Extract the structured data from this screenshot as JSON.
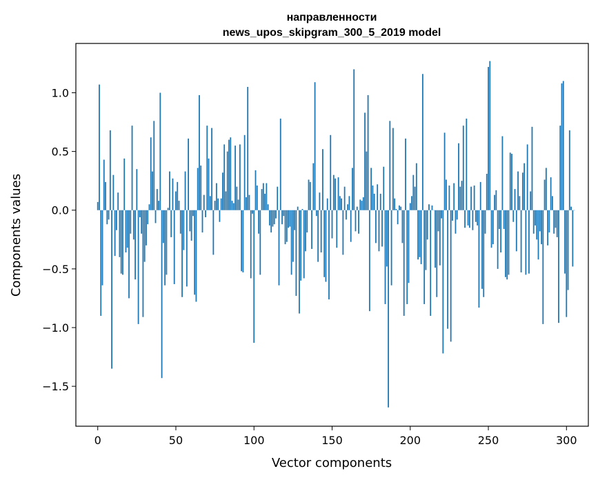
{
  "chart_data": {
    "type": "bar",
    "title": [
      "направленности",
      "news_upos_skipgram_300_5_2019 model"
    ],
    "xlabel": "Vector components",
    "ylabel": "Components values",
    "xlim": [
      -14,
      314
    ],
    "ylim": [
      -1.84,
      1.42
    ],
    "xticks": [
      0,
      50,
      100,
      150,
      200,
      250,
      300
    ],
    "xtick_labels": [
      "0",
      "50",
      "100",
      "150",
      "200",
      "250",
      "300"
    ],
    "yticks": [
      -1.5,
      -1.0,
      -0.5,
      0.0,
      0.5,
      1.0
    ],
    "ytick_labels": [
      "−1.5",
      "−1.0",
      "−0.5",
      "0.0",
      "0.5",
      "1.0"
    ],
    "bar_color": "#1f77b4",
    "grid": false,
    "values": [
      0.07,
      1.07,
      -0.9,
      -0.64,
      0.43,
      0.24,
      -0.12,
      -0.08,
      0.68,
      -1.35,
      0.3,
      -0.39,
      -0.17,
      0.15,
      -0.4,
      -0.54,
      -0.55,
      0.44,
      -0.36,
      -0.32,
      -0.75,
      -0.2,
      0.72,
      -0.25,
      -0.59,
      0.35,
      -0.97,
      -0.06,
      -0.2,
      -0.91,
      -0.44,
      -0.3,
      -0.12,
      0.05,
      0.62,
      0.33,
      0.76,
      -0.11,
      0.18,
      0.08,
      1.0,
      -1.43,
      -0.28,
      -0.64,
      -0.55,
      0.02,
      0.33,
      -0.23,
      0.27,
      -0.63,
      0.16,
      0.24,
      0.08,
      -0.2,
      -0.74,
      -0.34,
      0.33,
      -0.65,
      0.61,
      -0.18,
      -0.26,
      -0.05,
      -0.72,
      -0.78,
      0.36,
      0.98,
      0.38,
      -0.19,
      0.13,
      -0.06,
      0.72,
      0.44,
      0.12,
      0.7,
      -0.38,
      0.08,
      0.23,
      0.1,
      -0.1,
      0.1,
      0.32,
      0.56,
      0.16,
      0.5,
      0.6,
      0.62,
      0.08,
      0.06,
      0.55,
      0.2,
      0.09,
      0.56,
      -0.52,
      -0.53,
      0.64,
      0.11,
      1.05,
      0.13,
      -0.58,
      -0.03,
      -1.13,
      0.34,
      0.21,
      -0.2,
      -0.55,
      0.18,
      0.23,
      0.14,
      0.23,
      0.05,
      -0.13,
      -0.19,
      -0.14,
      -0.12,
      -0.07,
      0.2,
      -0.64,
      0.78,
      -0.12,
      -0.05,
      -0.29,
      -0.27,
      -0.15,
      -0.14,
      -0.55,
      -0.44,
      -0.17,
      -0.73,
      0.03,
      -0.88,
      -0.6,
      0.01,
      -0.58,
      -0.35,
      -0.19,
      0.26,
      0.24,
      -0.33,
      0.4,
      1.09,
      -0.05,
      -0.44,
      0.15,
      -0.36,
      0.52,
      -0.57,
      -0.61,
      0.1,
      -0.76,
      0.64,
      -0.24,
      0.3,
      0.27,
      -0.32,
      0.28,
      0.12,
      0.1,
      -0.38,
      0.2,
      -0.08,
      0.05,
      0.12,
      -0.27,
      0.36,
      1.2,
      -0.18,
      0.03,
      -0.2,
      0.09,
      0.08,
      0.11,
      0.83,
      0.5,
      0.98,
      -0.86,
      0.36,
      0.21,
      0.14,
      -0.28,
      0.22,
      -0.35,
      0.14,
      -0.31,
      0.37,
      -0.8,
      -0.48,
      -1.68,
      0.76,
      -0.64,
      0.7,
      0.1,
      0.01,
      -0.12,
      0.04,
      0.03,
      -0.28,
      -0.9,
      0.61,
      -0.8,
      -0.62,
      0.06,
      0.12,
      0.3,
      0.2,
      0.4,
      -0.42,
      -0.4,
      -0.46,
      1.16,
      -0.8,
      -0.51,
      -0.25,
      0.05,
      -0.9,
      0.04,
      0.0,
      -0.49,
      -0.74,
      -0.18,
      -0.47,
      -0.07,
      -1.22,
      0.66,
      0.26,
      -1.01,
      0.21,
      -1.12,
      -0.09,
      0.23,
      -0.2,
      -0.08,
      0.57,
      0.2,
      0.25,
      0.72,
      -0.15,
      0.78,
      -0.13,
      -0.15,
      0.2,
      -0.17,
      0.21,
      -0.1,
      -0.13,
      -0.83,
      0.24,
      -0.67,
      -0.74,
      -0.2,
      0.31,
      1.22,
      1.27,
      -0.32,
      -0.29,
      0.13,
      0.17,
      -0.5,
      -0.16,
      -0.36,
      0.63,
      -0.16,
      -0.57,
      -0.59,
      -0.55,
      0.49,
      0.48,
      -0.1,
      0.18,
      -0.35,
      0.33,
      0.12,
      -0.53,
      0.32,
      0.4,
      -0.55,
      0.56,
      -0.54,
      0.16,
      0.71,
      -0.2,
      -0.13,
      -0.25,
      -0.42,
      -0.18,
      -0.29,
      -0.97,
      0.26,
      0.36,
      -0.3,
      -0.19,
      0.28,
      0.12,
      -0.2,
      -0.15,
      -0.23,
      -0.96,
      0.72,
      1.08,
      1.1,
      -0.54,
      -0.91,
      -0.68,
      0.68,
      0.03,
      -0.48,
      0.0
    ]
  }
}
